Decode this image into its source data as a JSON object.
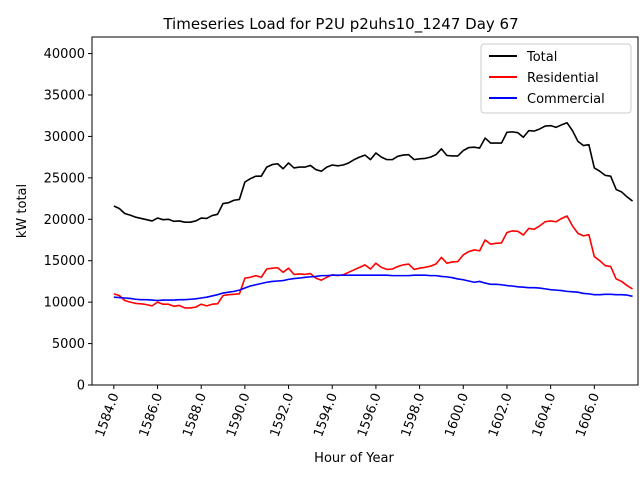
{
  "chart_data": {
    "type": "line",
    "title": "Timeseries Load for P2U p2uhs10_1247  Day 67",
    "xlabel": "Hour of Year",
    "ylabel": "kW total",
    "xlim": [
      1583.0,
      1608.0
    ],
    "ylim": [
      0,
      42000
    ],
    "x_ticks": [
      1584,
      1586,
      1588,
      1590,
      1592,
      1594,
      1596,
      1598,
      1600,
      1602,
      1604,
      1606
    ],
    "x_tick_labels": [
      "1584.0",
      "1586.0",
      "1588.0",
      "1590.0",
      "1592.0",
      "1594.0",
      "1596.0",
      "1598.0",
      "1600.0",
      "1602.0",
      "1604.0",
      "1606.0"
    ],
    "y_ticks": [
      0,
      5000,
      10000,
      15000,
      20000,
      25000,
      30000,
      35000,
      40000
    ],
    "y_tick_labels": [
      "0",
      "5000",
      "10000",
      "15000",
      "20000",
      "25000",
      "30000",
      "35000",
      "40000"
    ],
    "legend_position": "top-right",
    "series": [
      {
        "name": "Total",
        "color": "#000000",
        "x": [
          1584.0,
          1584.25,
          1584.5,
          1584.75,
          1585.0,
          1585.25,
          1585.5,
          1585.75,
          1586.0,
          1586.25,
          1586.5,
          1586.75,
          1587.0,
          1587.25,
          1587.5,
          1587.75,
          1588.0,
          1588.25,
          1588.5,
          1588.75,
          1589.0,
          1589.25,
          1589.5,
          1589.75,
          1590.0,
          1590.25,
          1590.5,
          1590.75,
          1591.0,
          1591.25,
          1591.5,
          1591.75,
          1592.0,
          1592.25,
          1592.5,
          1592.75,
          1593.0,
          1593.25,
          1593.5,
          1593.75,
          1594.0,
          1594.25,
          1594.5,
          1594.75,
          1595.0,
          1595.25,
          1595.5,
          1595.75,
          1596.0,
          1596.25,
          1596.5,
          1596.75,
          1597.0,
          1597.25,
          1597.5,
          1597.75,
          1598.0,
          1598.25,
          1598.5,
          1598.75,
          1599.0,
          1599.25,
          1599.5,
          1599.75,
          1600.0,
          1600.25,
          1600.5,
          1600.75,
          1601.0,
          1601.25,
          1601.5,
          1601.75,
          1602.0,
          1602.25,
          1602.5,
          1602.75,
          1603.0,
          1603.25,
          1603.5,
          1603.75,
          1604.0,
          1604.25,
          1604.5,
          1604.75,
          1605.0,
          1605.25,
          1605.5,
          1605.75,
          1606.0,
          1606.25,
          1606.5,
          1606.75,
          1607.0,
          1607.25,
          1607.5,
          1607.75
        ],
        "y": [
          21600,
          21300,
          20700,
          20500,
          20250,
          20100,
          19950,
          19800,
          20150,
          19950,
          20000,
          19750,
          19800,
          19650,
          19650,
          19800,
          20150,
          20100,
          20450,
          20600,
          21900,
          22000,
          22300,
          22400,
          24500,
          24900,
          25200,
          25200,
          26300,
          26600,
          26700,
          26100,
          26800,
          26200,
          26300,
          26300,
          26500,
          26000,
          25800,
          26300,
          26550,
          26450,
          26550,
          26800,
          27200,
          27500,
          27750,
          27200,
          28000,
          27500,
          27200,
          27200,
          27600,
          27750,
          27800,
          27200,
          27300,
          27350,
          27500,
          27800,
          28500,
          27700,
          27650,
          27650,
          28300,
          28650,
          28700,
          28600,
          29800,
          29200,
          29200,
          29200,
          30500,
          30550,
          30450,
          29900,
          30700,
          30650,
          30900,
          31250,
          31300,
          31100,
          31400,
          31650,
          30700,
          29400,
          28900,
          29000,
          26200,
          25800,
          25300,
          25200,
          23600,
          23300,
          22700,
          22200
        ]
      },
      {
        "name": "Residential",
        "color": "#ff0000",
        "x": [
          1584.0,
          1584.25,
          1584.5,
          1584.75,
          1585.0,
          1585.25,
          1585.5,
          1585.75,
          1586.0,
          1586.25,
          1586.5,
          1586.75,
          1587.0,
          1587.25,
          1587.5,
          1587.75,
          1588.0,
          1588.25,
          1588.5,
          1588.75,
          1589.0,
          1589.25,
          1589.5,
          1589.75,
          1590.0,
          1590.25,
          1590.5,
          1590.75,
          1591.0,
          1591.25,
          1591.5,
          1591.75,
          1592.0,
          1592.25,
          1592.5,
          1592.75,
          1593.0,
          1593.25,
          1593.5,
          1593.75,
          1594.0,
          1594.25,
          1594.5,
          1594.75,
          1595.0,
          1595.25,
          1595.5,
          1595.75,
          1596.0,
          1596.25,
          1596.5,
          1596.75,
          1597.0,
          1597.25,
          1597.5,
          1597.75,
          1598.0,
          1598.25,
          1598.5,
          1598.75,
          1599.0,
          1599.25,
          1599.5,
          1599.75,
          1600.0,
          1600.25,
          1600.5,
          1600.75,
          1601.0,
          1601.25,
          1601.5,
          1601.75,
          1602.0,
          1602.25,
          1602.5,
          1602.75,
          1603.0,
          1603.25,
          1603.5,
          1603.75,
          1604.0,
          1604.25,
          1604.5,
          1604.75,
          1605.0,
          1605.25,
          1605.5,
          1605.75,
          1606.0,
          1606.25,
          1606.5,
          1606.75,
          1607.0,
          1607.25,
          1607.5,
          1607.75
        ],
        "y": [
          11000,
          10800,
          10200,
          10000,
          9850,
          9800,
          9700,
          9550,
          10000,
          9750,
          9750,
          9500,
          9600,
          9300,
          9300,
          9400,
          9750,
          9550,
          9750,
          9800,
          10800,
          10900,
          10950,
          11000,
          12900,
          13000,
          13200,
          13000,
          14000,
          14100,
          14150,
          13600,
          14100,
          13350,
          13400,
          13350,
          13450,
          12900,
          12650,
          13000,
          13300,
          13200,
          13300,
          13600,
          13900,
          14200,
          14500,
          14000,
          14700,
          14200,
          13950,
          14000,
          14300,
          14500,
          14600,
          13950,
          14100,
          14200,
          14350,
          14600,
          15400,
          14700,
          14850,
          14900,
          15700,
          16100,
          16300,
          16200,
          17500,
          17000,
          17100,
          17150,
          18400,
          18600,
          18550,
          18100,
          18900,
          18800,
          19200,
          19700,
          19800,
          19700,
          20100,
          20400,
          19200,
          18300,
          18000,
          18150,
          15500,
          15000,
          14400,
          14300,
          12800,
          12500,
          12000,
          11600
        ]
      },
      {
        "name": "Commercial",
        "color": "#0000ff",
        "x": [
          1584.0,
          1584.25,
          1584.5,
          1584.75,
          1585.0,
          1585.25,
          1585.5,
          1585.75,
          1586.0,
          1586.25,
          1586.5,
          1586.75,
          1587.0,
          1587.25,
          1587.5,
          1587.75,
          1588.0,
          1588.25,
          1588.5,
          1588.75,
          1589.0,
          1589.25,
          1589.5,
          1589.75,
          1590.0,
          1590.25,
          1590.5,
          1590.75,
          1591.0,
          1591.25,
          1591.5,
          1591.75,
          1592.0,
          1592.25,
          1592.5,
          1592.75,
          1593.0,
          1593.25,
          1593.5,
          1593.75,
          1594.0,
          1594.25,
          1594.5,
          1594.75,
          1595.0,
          1595.25,
          1595.5,
          1595.75,
          1596.0,
          1596.25,
          1596.5,
          1596.75,
          1597.0,
          1597.25,
          1597.5,
          1597.75,
          1598.0,
          1598.25,
          1598.5,
          1598.75,
          1599.0,
          1599.25,
          1599.5,
          1599.75,
          1600.0,
          1600.25,
          1600.5,
          1600.75,
          1601.0,
          1601.25,
          1601.5,
          1601.75,
          1602.0,
          1602.25,
          1602.5,
          1602.75,
          1603.0,
          1603.25,
          1603.5,
          1603.75,
          1604.0,
          1604.25,
          1604.5,
          1604.75,
          1605.0,
          1605.25,
          1605.5,
          1605.75,
          1606.0,
          1606.25,
          1606.5,
          1606.75,
          1607.0,
          1607.25,
          1607.5,
          1607.75
        ],
        "y": [
          10600,
          10550,
          10500,
          10450,
          10350,
          10300,
          10300,
          10250,
          10200,
          10250,
          10250,
          10250,
          10300,
          10300,
          10350,
          10400,
          10500,
          10600,
          10750,
          10900,
          11100,
          11200,
          11300,
          11450,
          11700,
          11950,
          12100,
          12250,
          12400,
          12500,
          12550,
          12600,
          12750,
          12850,
          12900,
          13000,
          13050,
          13100,
          13200,
          13200,
          13250,
          13250,
          13250,
          13250,
          13250,
          13250,
          13250,
          13250,
          13250,
          13250,
          13250,
          13200,
          13200,
          13200,
          13200,
          13250,
          13250,
          13250,
          13200,
          13200,
          13100,
          13050,
          12950,
          12800,
          12700,
          12550,
          12400,
          12500,
          12300,
          12150,
          12150,
          12100,
          12000,
          11950,
          11850,
          11800,
          11750,
          11750,
          11700,
          11600,
          11500,
          11450,
          11400,
          11300,
          11250,
          11200,
          11050,
          11000,
          10900,
          10900,
          10950,
          10950,
          10900,
          10900,
          10850,
          10700
        ]
      }
    ]
  }
}
